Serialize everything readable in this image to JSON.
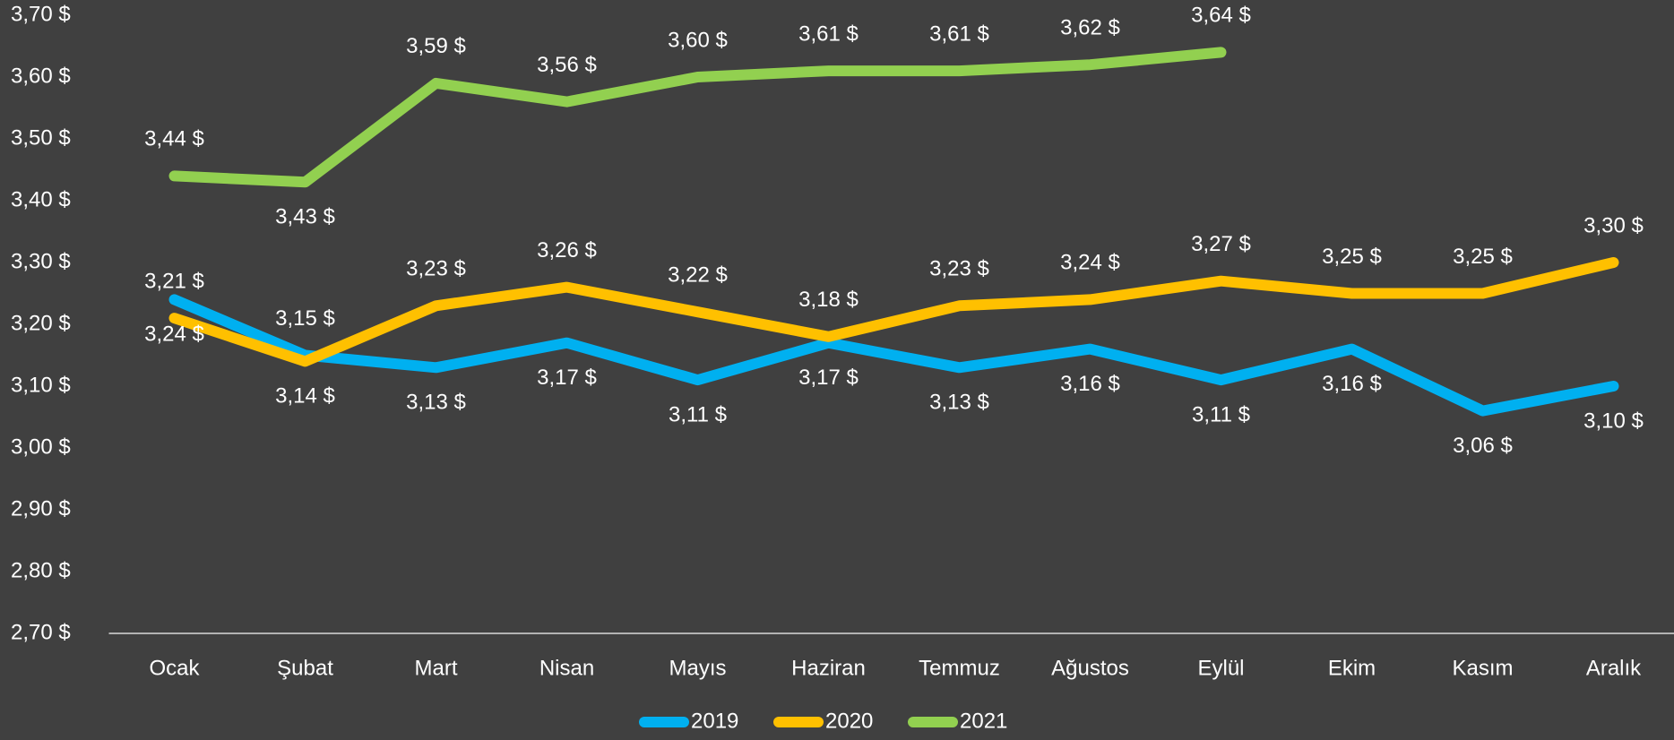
{
  "chart_data": {
    "type": "line",
    "categories": [
      "Ocak",
      "Şubat",
      "Mart",
      "Nisan",
      "Mayıs",
      "Haziran",
      "Temmuz",
      "Ağustos",
      "Eylül",
      "Ekim",
      "Kasım",
      "Aralık"
    ],
    "series": [
      {
        "name": "2019",
        "color": "#00b0f0",
        "values": [
          3.24,
          3.15,
          3.13,
          3.17,
          3.11,
          3.17,
          3.13,
          3.16,
          3.11,
          3.16,
          3.06,
          3.1
        ],
        "value_labels": [
          "3,24 $",
          "3,15 $",
          "3,13 $",
          "3,17 $",
          "3,11 $",
          "3,17 $",
          "3,13 $",
          "3,16 $",
          "3,11 $",
          "3,16 $",
          "3,06 $",
          "3,10 $"
        ]
      },
      {
        "name": "2020",
        "color": "#ffc000",
        "values": [
          3.21,
          3.14,
          3.23,
          3.26,
          3.22,
          3.18,
          3.23,
          3.24,
          3.27,
          3.25,
          3.25,
          3.3
        ],
        "value_labels": [
          "3,21 $",
          "3,14 $",
          "3,23 $",
          "3,26 $",
          "3,22 $",
          "3,18 $",
          "3,23 $",
          "3,24 $",
          "3,27 $",
          "3,25 $",
          "3,25 $",
          "3,30 $"
        ]
      },
      {
        "name": "2021",
        "color": "#92d050",
        "values": [
          3.44,
          3.43,
          3.59,
          3.56,
          3.6,
          3.61,
          3.61,
          3.62,
          3.64,
          null,
          null,
          null
        ],
        "value_labels": [
          "3,44 $",
          "3,43 $",
          "3,59 $",
          "3,56 $",
          "3,60 $",
          "3,61 $",
          "3,61 $",
          "3,62 $",
          "3,64 $",
          null,
          null,
          null
        ]
      }
    ],
    "ylim": [
      2.7,
      3.7
    ],
    "yticks": [
      {
        "value": 2.7,
        "label": "2,70 $"
      },
      {
        "value": 2.8,
        "label": "2,80 $"
      },
      {
        "value": 2.9,
        "label": "2,90 $"
      },
      {
        "value": 3.0,
        "label": "3,00 $"
      },
      {
        "value": 3.1,
        "label": "3,10 $"
      },
      {
        "value": 3.2,
        "label": "3,20 $"
      },
      {
        "value": 3.3,
        "label": "3,30 $"
      },
      {
        "value": 3.4,
        "label": "3,40 $"
      },
      {
        "value": 3.5,
        "label": "3,50 $"
      },
      {
        "value": 3.6,
        "label": "3,60 $"
      },
      {
        "value": 3.7,
        "label": "3,70 $"
      }
    ],
    "legend": "bottom"
  }
}
